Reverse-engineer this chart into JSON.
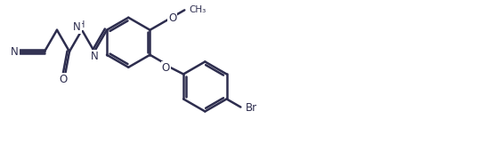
{
  "background_color": "#ffffff",
  "line_color": "#2d2d4e",
  "line_width": 1.8,
  "font_size": 8.5,
  "figsize": [
    5.37,
    1.7
  ],
  "dpi": 100,
  "xlim": [
    0,
    53.7
  ],
  "ylim": [
    0,
    17.0
  ]
}
